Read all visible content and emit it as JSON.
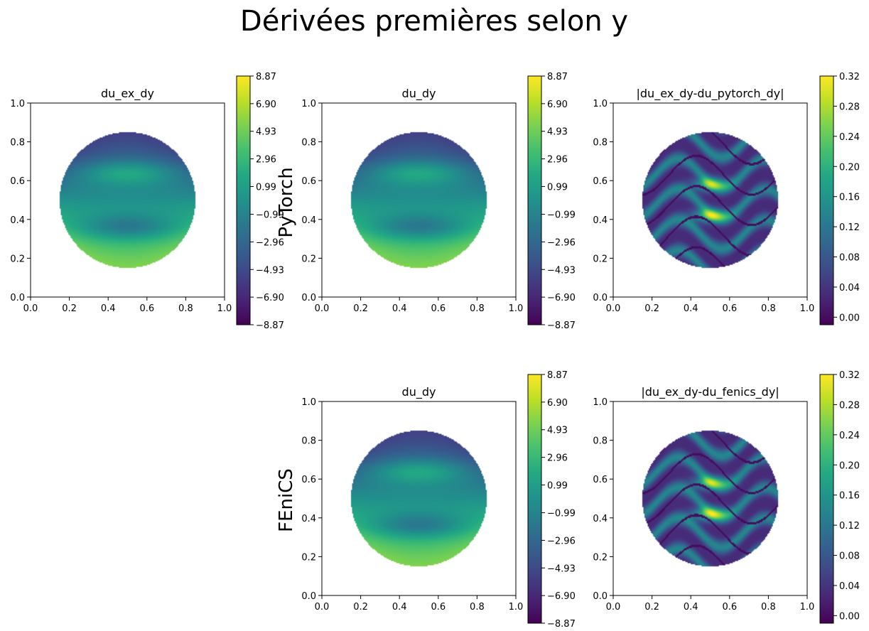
{
  "figure": {
    "title": "Dérivées premières selon y",
    "row_labels": [
      "PyTorch",
      "FEniCS"
    ]
  },
  "chart_data": [
    {
      "id": "top-left",
      "type": "heatmap",
      "title": "du_ex_dy",
      "field": "derivative",
      "xlim": [
        0,
        1
      ],
      "ylim": [
        0,
        1
      ],
      "xticks": [
        "0.0",
        "0.2",
        "0.4",
        "0.6",
        "0.8",
        "1.0"
      ],
      "yticks": [
        "0.0",
        "0.2",
        "0.4",
        "0.6",
        "0.8",
        "1.0"
      ],
      "domain": {
        "shape": "disk",
        "center": [
          0.5,
          0.5
        ],
        "radius": 0.35
      },
      "colorbar": {
        "colormap": "viridis",
        "min": -8.87,
        "max": 8.87,
        "ticks": [
          "−8.87",
          "−6.90",
          "−4.93",
          "−2.96",
          "−0.99",
          "0.99",
          "2.96",
          "4.93",
          "6.90",
          "8.87"
        ]
      }
    },
    {
      "id": "top-middle",
      "type": "heatmap",
      "title": "du_dy",
      "field": "derivative",
      "xlim": [
        0,
        1
      ],
      "ylim": [
        0,
        1
      ],
      "xticks": [
        "0.0",
        "0.2",
        "0.4",
        "0.6",
        "0.8",
        "1.0"
      ],
      "yticks": [
        "0.0",
        "0.2",
        "0.4",
        "0.6",
        "0.8",
        "1.0"
      ],
      "domain": {
        "shape": "disk",
        "center": [
          0.5,
          0.5
        ],
        "radius": 0.35
      },
      "colorbar": {
        "colormap": "viridis",
        "min": -8.87,
        "max": 8.87,
        "ticks": [
          "−8.87",
          "−6.90",
          "−4.93",
          "−2.96",
          "−0.99",
          "0.99",
          "2.96",
          "4.93",
          "6.90",
          "8.87"
        ]
      }
    },
    {
      "id": "top-right",
      "type": "heatmap",
      "title": "|du_ex_dy-du_pytorch_dy|",
      "field": "error",
      "xlim": [
        0,
        1
      ],
      "ylim": [
        0,
        1
      ],
      "xticks": [
        "0.0",
        "0.2",
        "0.4",
        "0.6",
        "0.8",
        "1.0"
      ],
      "yticks": [
        "0.0",
        "0.2",
        "0.4",
        "0.6",
        "0.8",
        "1.0"
      ],
      "domain": {
        "shape": "disk",
        "center": [
          0.5,
          0.5
        ],
        "radius": 0.35
      },
      "colorbar": {
        "colormap": "viridis",
        "min": -0.01,
        "max": 0.32,
        "ticks": [
          "0.00",
          "0.04",
          "0.08",
          "0.12",
          "0.16",
          "0.20",
          "0.24",
          "0.28",
          "0.32"
        ]
      }
    },
    {
      "id": "bottom-middle",
      "type": "heatmap",
      "title": "du_dy",
      "field": "derivative",
      "xlim": [
        0,
        1
      ],
      "ylim": [
        0,
        1
      ],
      "xticks": [
        "0.0",
        "0.2",
        "0.4",
        "0.6",
        "0.8",
        "1.0"
      ],
      "yticks": [
        "0.0",
        "0.2",
        "0.4",
        "0.6",
        "0.8",
        "1.0"
      ],
      "domain": {
        "shape": "disk",
        "center": [
          0.5,
          0.5
        ],
        "radius": 0.35
      },
      "colorbar": {
        "colormap": "viridis",
        "min": -8.87,
        "max": 8.87,
        "ticks": [
          "−8.87",
          "−6.90",
          "−4.93",
          "−2.96",
          "−0.99",
          "0.99",
          "2.96",
          "4.93",
          "6.90",
          "8.87"
        ]
      }
    },
    {
      "id": "bottom-right",
      "type": "heatmap",
      "title": "|du_ex_dy-du_fenics_dy|",
      "field": "error",
      "xlim": [
        0,
        1
      ],
      "ylim": [
        0,
        1
      ],
      "xticks": [
        "0.0",
        "0.2",
        "0.4",
        "0.6",
        "0.8",
        "1.0"
      ],
      "yticks": [
        "0.0",
        "0.2",
        "0.4",
        "0.6",
        "0.8",
        "1.0"
      ],
      "domain": {
        "shape": "disk",
        "center": [
          0.5,
          0.5
        ],
        "radius": 0.35
      },
      "colorbar": {
        "colormap": "viridis",
        "min": -0.01,
        "max": 0.32,
        "ticks": [
          "0.00",
          "0.04",
          "0.08",
          "0.12",
          "0.16",
          "0.20",
          "0.24",
          "0.28",
          "0.32"
        ]
      }
    }
  ]
}
